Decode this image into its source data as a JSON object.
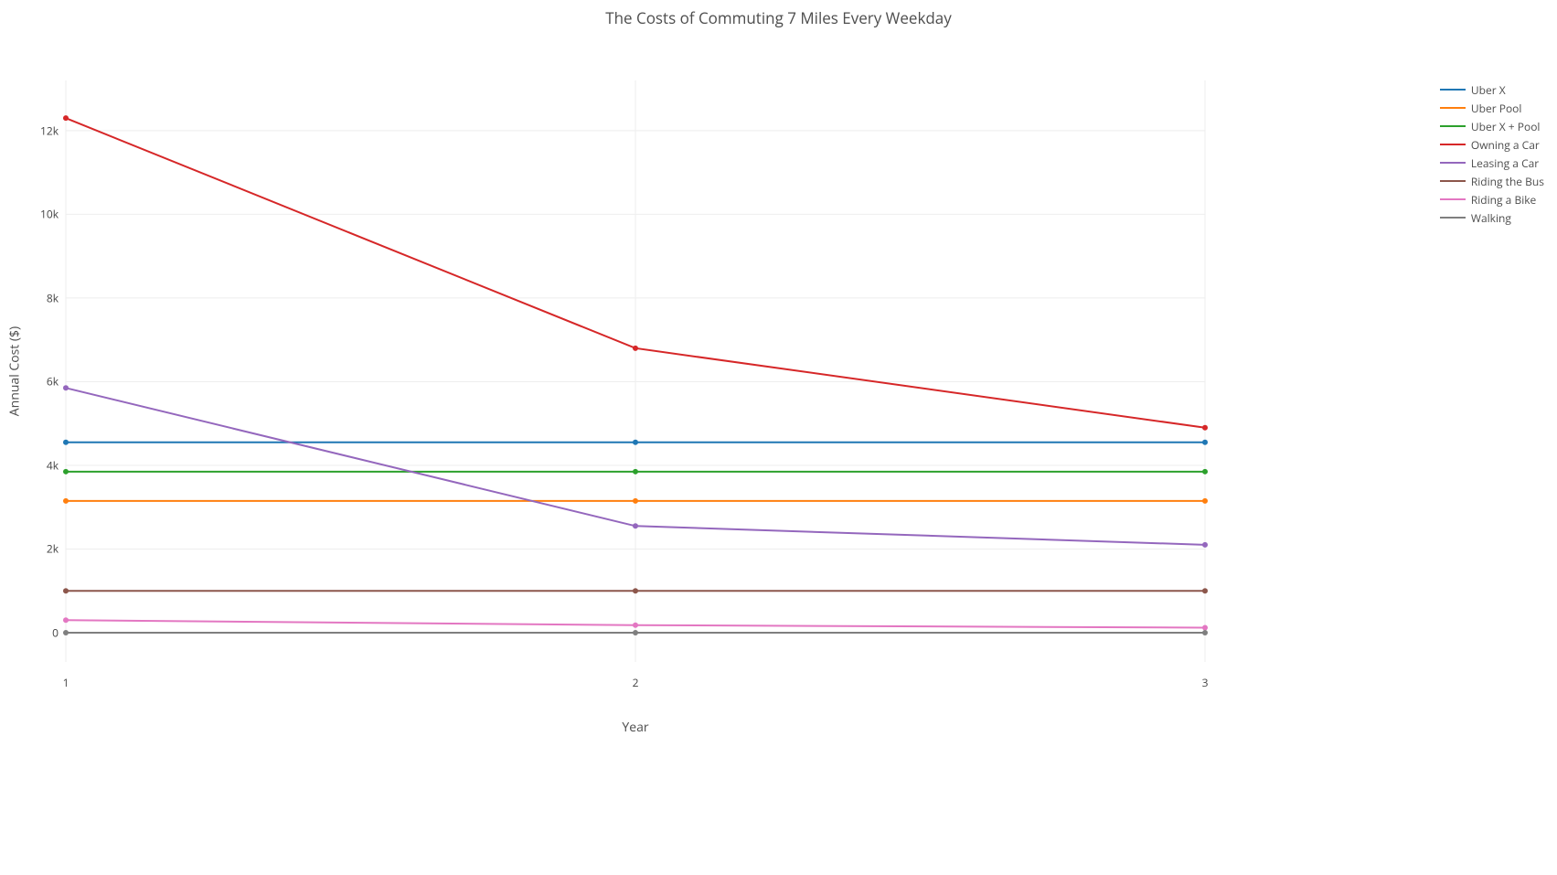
{
  "chart": {
    "type": "line",
    "title": "The Costs of Commuting 7 Miles Every Weekday",
    "title_fontsize": 17,
    "background_color": "#ffffff",
    "grid_color": "#eeeeee",
    "zero_line_color": "#444444",
    "line_width": 2,
    "marker_size": 6,
    "x": {
      "label": "Year",
      "ticks": [
        "1",
        "2",
        "3"
      ],
      "fontsize": 12,
      "label_fontsize": 14
    },
    "y": {
      "label": "Annual Cost ($)",
      "min": -700,
      "max": 13200,
      "ticks": [
        0,
        2000,
        4000,
        6000,
        8000,
        10000,
        12000
      ],
      "tick_labels": [
        "0",
        "2k",
        "4k",
        "6k",
        "8k",
        "10k",
        "12k"
      ],
      "fontsize": 12,
      "label_fontsize": 14
    },
    "series": [
      {
        "name": "Uber X",
        "color": "#1f77b4",
        "values": [
          4550,
          4550,
          4550
        ]
      },
      {
        "name": "Uber Pool",
        "color": "#ff7f0e",
        "values": [
          3150,
          3150,
          3150
        ]
      },
      {
        "name": "Uber X + Pool",
        "color": "#2ca02c",
        "values": [
          3850,
          3850,
          3850
        ]
      },
      {
        "name": "Owning a Car",
        "color": "#d62728",
        "values": [
          12300,
          6800,
          4900
        ]
      },
      {
        "name": "Leasing a Car",
        "color": "#9467bd",
        "values": [
          5850,
          2550,
          2100
        ]
      },
      {
        "name": "Riding the Bus",
        "color": "#8c564b",
        "values": [
          1000,
          1000,
          1000
        ]
      },
      {
        "name": "Riding a Bike",
        "color": "#e377c2",
        "values": [
          300,
          180,
          120
        ]
      },
      {
        "name": "Walking",
        "color": "#7f7f7f",
        "values": [
          0,
          0,
          0
        ]
      }
    ]
  }
}
